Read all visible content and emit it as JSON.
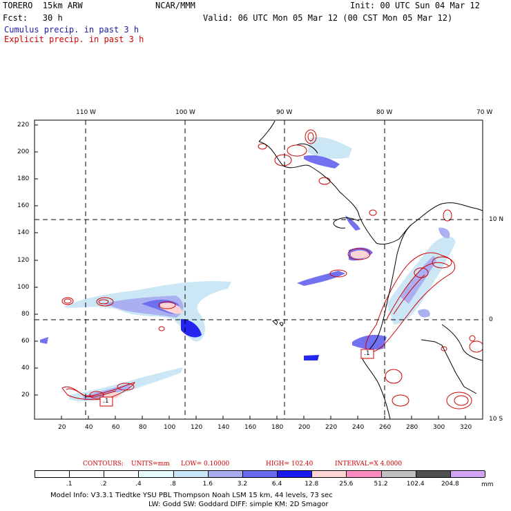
{
  "header": {
    "model": "TORERO  15km ARW",
    "org": "NCAR/MMM",
    "init": "Init: 00 UTC Sun 04 Mar 12",
    "fcst": "Fcst:   30 h",
    "valid": "Valid: 06 UTC Mon 05 Mar 12 (00 CST Mon 05 Mar 12)",
    "legend_cumulus": "Cumulus precip. in past 3 h",
    "legend_explicit": "Explicit precip. in past 3 h"
  },
  "map": {
    "lon_labels": [
      "110 W",
      "100 W",
      "90 W",
      "80 W",
      "70 W"
    ],
    "lat_labels": [
      "10 N",
      "0",
      "10 S"
    ],
    "y_ticks": [
      "220",
      "200",
      "180",
      "160",
      "140",
      "120",
      "100",
      "80",
      "60",
      "40",
      "20"
    ],
    "x_ticks": [
      "20",
      "40",
      "60",
      "80",
      "100",
      "120",
      "140",
      "160",
      "180",
      "200",
      "220",
      "240",
      "260",
      "280",
      "300",
      "320"
    ],
    "high_marks": [
      ".1",
      ".1"
    ]
  },
  "contours": {
    "label": "CONTOURS:",
    "units": "UNITS=mm",
    "low": "LOW= 0.10000",
    "high": "HIGH=  102.40",
    "interval": "INTERVAL=X  4.0000"
  },
  "colorbar": {
    "colors": [
      "#ffffff",
      "#ffffff",
      "#ffffff",
      "#e6fbfb",
      "#c8e6f6",
      "#a6acef",
      "#6a6af0",
      "#1a1af0",
      "#ffd4d4",
      "#ff8cc0",
      "#c0c0c0",
      "#505050",
      "#d2a4f6"
    ],
    "labels": [
      ".1",
      ".2",
      ".4",
      ".8",
      "1.6",
      "3.2",
      "6.4",
      "12.8",
      "25.6",
      "51.2",
      "102.4",
      "204.8"
    ],
    "unit": "mm"
  },
  "footer": {
    "line1": "Model Info: V3.3.1    Tiedtke YSU PBL   Thompson      Noah LSM  15 km,    44 levels,   73 sec",
    "line2": "LW: Godd SW: Goddard DIFF: simple KM: 2D Smagor"
  }
}
